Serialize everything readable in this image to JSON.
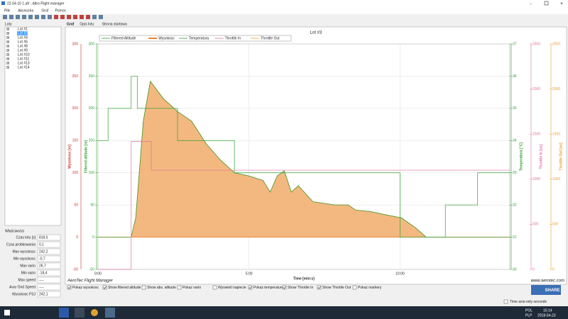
{
  "window": {
    "title": "22-04-10 1.afr - Altro Flight manager"
  },
  "menu": [
    "Plik",
    "Akcesoria",
    "Graf",
    "Pomoc"
  ],
  "tree": {
    "label": "Loty",
    "items": [
      "Lot #1",
      "Lot #3",
      "Lot #4",
      "Lot #6",
      "Lot #8",
      "Lot #9",
      "Lot #10",
      "Lot #11",
      "Lot #13",
      "Lot #14"
    ],
    "selected": 1
  },
  "properties": {
    "label": "Właściwości",
    "rows": [
      [
        "Czas lotu [s]",
        "818,5"
      ],
      [
        "Czas probkowania",
        "0,1"
      ],
      [
        "Max wysokosc",
        "242,2"
      ],
      [
        "Min wysokosc",
        "-0,7"
      ],
      [
        "Max vario",
        "26,7"
      ],
      [
        "Min vario",
        "-18,4"
      ],
      [
        "Max speed",
        "----"
      ],
      [
        "Avar Gnd Speed",
        "----"
      ],
      [
        "Wysokosc FSJ",
        "242,1"
      ]
    ]
  },
  "tabs": [
    "Graf",
    "Opis lotu",
    "Strona startowa"
  ],
  "chart_data": {
    "type": "line",
    "title": "Lot #3",
    "xlabel": "Time [min:s]",
    "xlim": [
      0,
      818
    ],
    "xticks": [
      {
        "value": 0,
        "label": "0:00"
      },
      {
        "value": 300,
        "label": "5:00"
      },
      {
        "value": 600,
        "label": "10:00"
      }
    ],
    "grid": true,
    "axes": [
      {
        "label": "Wysokosc [m]",
        "color": "#d03030",
        "side": "left",
        "lim": [
          -50,
          300
        ],
        "ticks": [
          -50,
          0,
          50,
          100,
          150,
          200,
          250,
          300
        ]
      },
      {
        "label": "Filtered altitude [m]",
        "color": "#30a030",
        "side": "left",
        "lim": [
          -50,
          300
        ],
        "ticks": [
          -50,
          0,
          50,
          100,
          150,
          200,
          250,
          300
        ]
      },
      {
        "label": "Temperatura [°C]",
        "color": "#30a030",
        "side": "right",
        "lim": [
          30,
          37
        ],
        "ticks": [
          30,
          31,
          32,
          33,
          34,
          35,
          36,
          37
        ]
      },
      {
        "label": "Throttle In [us]",
        "color": "#e070a0",
        "side": "right",
        "lim": [
          0,
          2500
        ],
        "ticks": [
          0,
          500,
          1000,
          1500,
          2000,
          2500
        ]
      },
      {
        "label": "Throttle Out [us]",
        "color": "#e8a030",
        "side": "right",
        "lim": [
          0,
          2500
        ],
        "ticks": [
          0,
          500,
          1000,
          1500,
          2000,
          2500
        ]
      }
    ],
    "series": [
      {
        "name": "Filtered Altitude",
        "color": "#30a030",
        "axis": 1,
        "x": [
          0,
          66,
          75,
          90,
          104,
          130,
          158,
          186,
          215,
          243,
          271,
          300,
          328,
          342,
          356,
          370,
          384,
          398,
          427,
          470,
          497,
          512,
          540,
          570,
          603,
          630,
          652,
          818
        ],
        "values": [
          0,
          0,
          30,
          180,
          242,
          215,
          195,
          180,
          145,
          120,
          100,
          95,
          88,
          70,
          95,
          103,
          70,
          80,
          55,
          50,
          50,
          42,
          40,
          35,
          30,
          15,
          0,
          0
        ]
      },
      {
        "name": "Wysokosc",
        "color": "#e8822e",
        "axis": 0,
        "area": true,
        "x": [
          0,
          66,
          75,
          90,
          104,
          130,
          158,
          186,
          215,
          243,
          271,
          300,
          328,
          342,
          356,
          370,
          384,
          398,
          427,
          470,
          497,
          512,
          540,
          570,
          603,
          630,
          652,
          818
        ],
        "values": [
          0,
          0,
          30,
          180,
          242,
          215,
          195,
          180,
          145,
          120,
          100,
          95,
          88,
          70,
          95,
          103,
          70,
          80,
          55,
          50,
          50,
          42,
          40,
          35,
          30,
          15,
          0,
          0
        ]
      },
      {
        "name": "Temperatura",
        "color": "#30a030",
        "axis": 2,
        "step": true,
        "x": [
          0,
          20,
          66,
          78,
          158,
          271,
          600,
          690,
          754,
          818
        ],
        "values": [
          34,
          35,
          36,
          35,
          34,
          33,
          31,
          32,
          33,
          33
        ]
      },
      {
        "name": "Throttle In",
        "color": "#e070a0",
        "axis": 3,
        "x": [
          0,
          66,
          66,
          106,
          106,
          818
        ],
        "values": [
          0,
          0,
          1420,
          1420,
          1100,
          1100
        ]
      },
      {
        "name": "Throttle Out",
        "color": "#e8a030",
        "axis": 4
      }
    ],
    "watermark_left": "AeroTec Flight Manager",
    "watermark_right": "www.aerotec.com"
  },
  "options": [
    {
      "label": "Pokaz wysokosc",
      "checked": true
    },
    {
      "label": "Show filtered altitude",
      "checked": true
    },
    {
      "label": "Show abs. altitude",
      "checked": false
    },
    {
      "label": "Pokaz vario",
      "checked": false
    },
    {
      "label": "Wyswietl napiecie",
      "checked": false
    },
    {
      "label": "Pokaz temperature",
      "checked": true
    },
    {
      "label": "Show Throttle In",
      "checked": true
    },
    {
      "label": "Show Throttle Out",
      "checked": true
    },
    {
      "label": "Pokaz markery",
      "checked": false
    }
  ],
  "share": "SHARE",
  "time_option": {
    "label": "Time axis-only seconds",
    "checked": false
  },
  "taskbar": {
    "lang": "POL",
    "layout": "PLP",
    "time": "15:14",
    "date": "2018-04-23"
  }
}
